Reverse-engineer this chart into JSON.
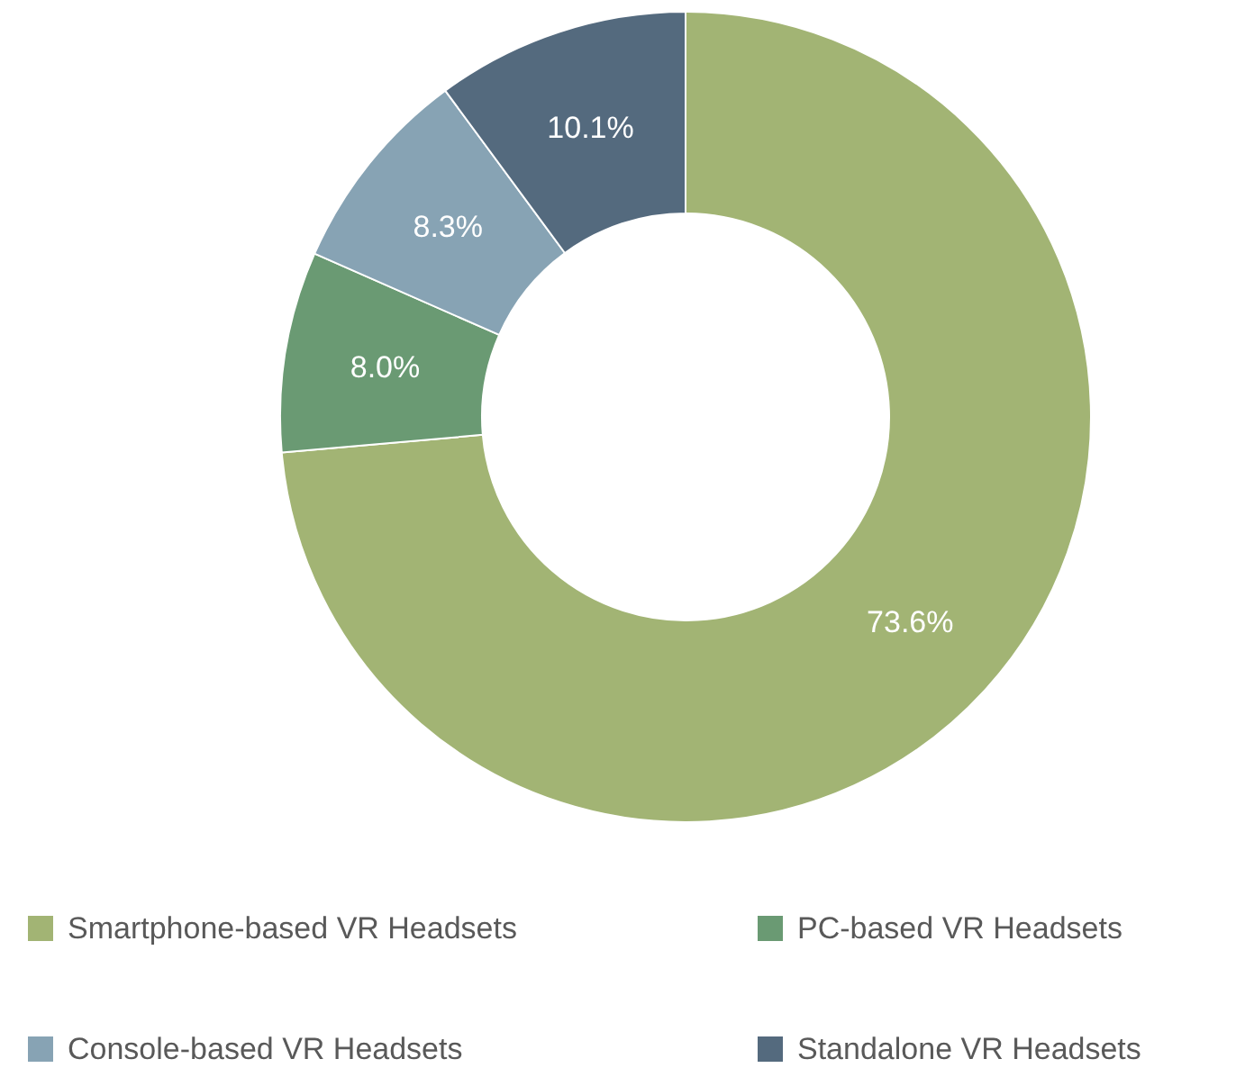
{
  "chart_data": {
    "type": "donut",
    "categories": [
      "Smartphone-based VR Headsets",
      "PC-based VR Headsets",
      "Console-based VR Headsets",
      "Standalone VR Headsets"
    ],
    "values": [
      73.6,
      8.0,
      8.3,
      10.1
    ],
    "colors": [
      "#a2b474",
      "#6a9a73",
      "#87a3b4",
      "#546a7e"
    ],
    "value_labels": [
      "73.6%",
      "8.0%",
      "8.3%",
      "10.1%"
    ],
    "legend": "bottom"
  }
}
